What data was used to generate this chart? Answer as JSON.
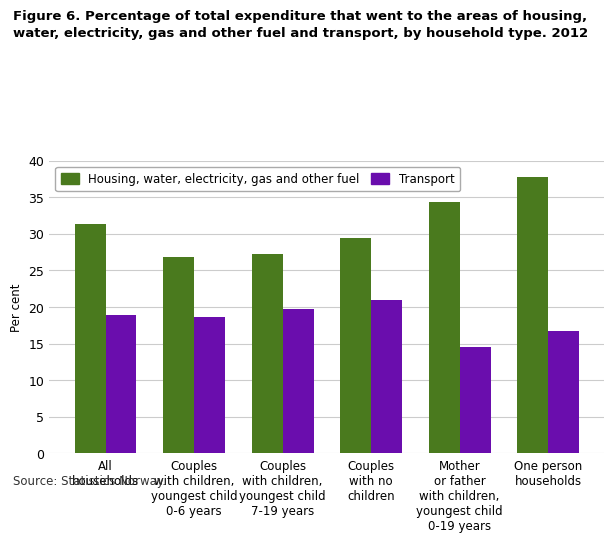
{
  "title_line1": "Figure 6. Percentage of total expenditure that went to the areas of housing,",
  "title_line2": "water, electricity, gas and other fuel and transport, by household type. 2012",
  "ylabel": "Per cent",
  "source": "Source: Statistics Norway.",
  "categories": [
    "All\nhouseholds",
    "Couples\nwith children,\nyoungest child\n0-6 years",
    "Couples\nwith children,\nyoungest child\n7-19 years",
    "Couples\nwith no\nchildren",
    "Mother\nor father\nwith children,\nyoungest child\n0-19 years",
    "One person\nhouseholds"
  ],
  "housing_values": [
    31.3,
    26.8,
    27.3,
    29.4,
    34.3,
    37.8
  ],
  "transport_values": [
    18.9,
    18.7,
    19.7,
    20.9,
    14.6,
    16.7
  ],
  "housing_color": "#4a7a1e",
  "transport_color": "#6a0dad",
  "ylim": [
    0,
    40
  ],
  "yticks": [
    0,
    5,
    10,
    15,
    20,
    25,
    30,
    35,
    40
  ],
  "legend_housing": "Housing, water, electricity, gas and other fuel",
  "legend_transport": "Transport",
  "bar_width": 0.35,
  "title_fontsize": 9.5,
  "label_fontsize": 8.5,
  "tick_fontsize": 9,
  "source_fontsize": 8.5,
  "background_color": "#ffffff",
  "grid_color": "#cccccc"
}
